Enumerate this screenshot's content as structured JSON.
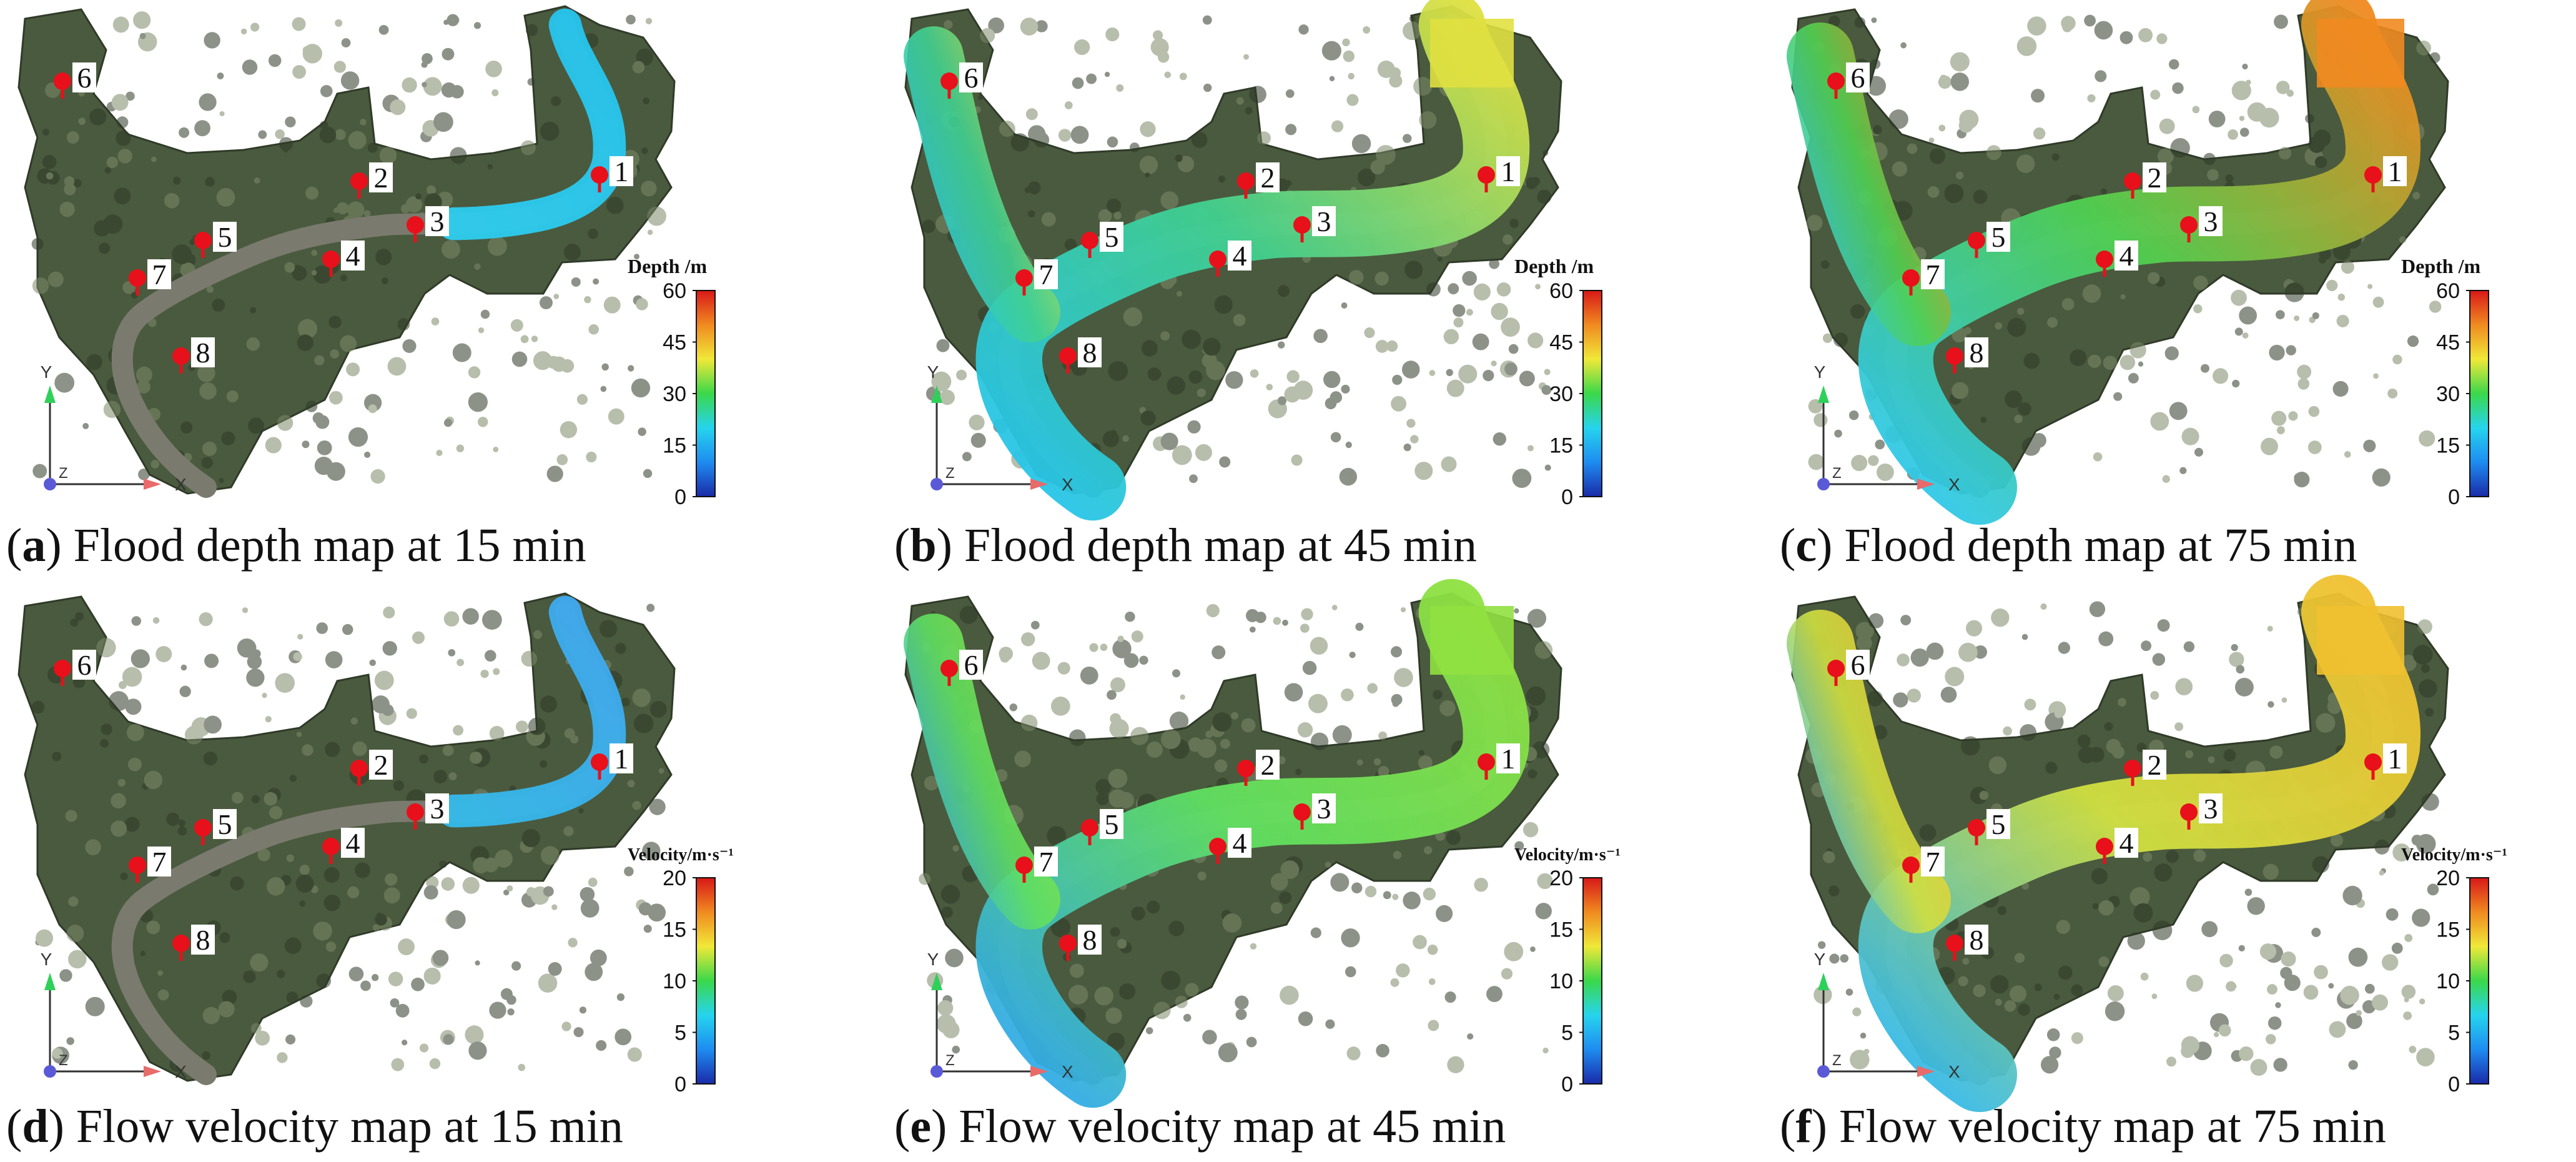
{
  "figure": {
    "panels": [
      {
        "id": "a",
        "letter": "a",
        "caption_text": ") Flood depth map at 15 min",
        "variable": "depth",
        "time_min": 15,
        "flood_extent": 0.25,
        "legend": {
          "title": "Depth /m",
          "ticks": [
            "60",
            "45",
            "30",
            "15",
            "0"
          ],
          "min": 0,
          "max": 60
        },
        "axes": {
          "x": "X",
          "y": "Y",
          "z": "Z"
        },
        "markers": [
          "1",
          "2",
          "3",
          "4",
          "5",
          "6",
          "7",
          "8"
        ]
      },
      {
        "id": "b",
        "letter": "b",
        "caption_text": ") Flood depth map at 45 min",
        "variable": "depth",
        "time_min": 45,
        "flood_extent": 0.85,
        "legend": {
          "title": "Depth /m",
          "ticks": [
            "60",
            "45",
            "30",
            "15",
            "0"
          ],
          "min": 0,
          "max": 60
        },
        "axes": {
          "x": "X",
          "y": "Y",
          "z": "Z"
        },
        "markers": [
          "1",
          "2",
          "3",
          "4",
          "5",
          "6",
          "7",
          "8"
        ]
      },
      {
        "id": "c",
        "letter": "c",
        "caption_text": ") Flood depth map at 75 min",
        "variable": "depth",
        "time_min": 75,
        "flood_extent": 1.0,
        "legend": {
          "title": "Depth /m",
          "ticks": [
            "60",
            "45",
            "30",
            "15",
            "0"
          ],
          "min": 0,
          "max": 60
        },
        "axes": {
          "x": "X",
          "y": "Y",
          "z": "Z"
        },
        "markers": [
          "1",
          "2",
          "3",
          "4",
          "5",
          "6",
          "7",
          "8"
        ]
      },
      {
        "id": "d",
        "letter": "d",
        "caption_text": ") Flow velocity map at 15 min",
        "variable": "velocity",
        "time_min": 15,
        "flood_extent": 0.25,
        "legend": {
          "title": "Velocity/m·s⁻¹",
          "ticks": [
            "20",
            "15",
            "10",
            "5",
            "0"
          ],
          "min": 0,
          "max": 20
        },
        "axes": {
          "x": "X",
          "y": "Y",
          "z": "Z"
        },
        "markers": [
          "1",
          "2",
          "3",
          "4",
          "5",
          "6",
          "7",
          "8"
        ]
      },
      {
        "id": "e",
        "letter": "e",
        "caption_text": ") Flow velocity map at 45 min",
        "variable": "velocity",
        "time_min": 45,
        "flood_extent": 0.85,
        "legend": {
          "title": "Velocity/m·s⁻¹",
          "ticks": [
            "20",
            "15",
            "10",
            "5",
            "0"
          ],
          "min": 0,
          "max": 20
        },
        "axes": {
          "x": "X",
          "y": "Y",
          "z": "Z"
        },
        "markers": [
          "1",
          "2",
          "3",
          "4",
          "5",
          "6",
          "7",
          "8"
        ]
      },
      {
        "id": "f",
        "letter": "f",
        "caption_text": ") Flow velocity map at 75 min",
        "variable": "velocity",
        "time_min": 75,
        "flood_extent": 1.0,
        "legend": {
          "title": "Velocity/m·s⁻¹",
          "ticks": [
            "20",
            "15",
            "10",
            "5",
            "0"
          ],
          "min": 0,
          "max": 20
        },
        "axes": {
          "x": "X",
          "y": "Y",
          "z": "Z"
        },
        "markers": [
          "1",
          "2",
          "3",
          "4",
          "5",
          "6",
          "7",
          "8"
        ]
      }
    ],
    "colors": {
      "terrain": "#4a5a3e",
      "terrain_dark": "#2f3a28",
      "terrain_light": "#7d8a6a",
      "river": "#7a7a6e",
      "marker": "#e8101a",
      "axis_x": "#e86a6a",
      "axis_y": "#2fd05a",
      "axis_origin": "#5a5ad8",
      "colorscale": [
        "#1a2aa8",
        "#1e8cf0",
        "#26d4ee",
        "#3ad84a",
        "#f0e838",
        "#f08a20",
        "#d81818"
      ]
    }
  }
}
